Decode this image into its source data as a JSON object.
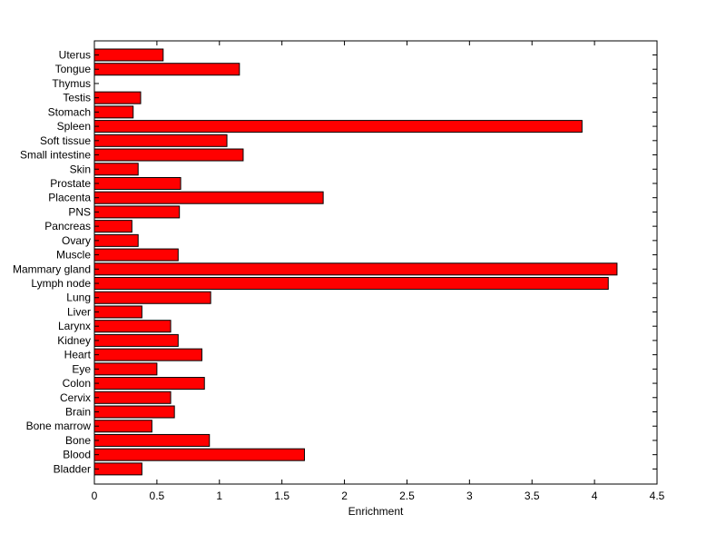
{
  "chart_data": {
    "type": "bar",
    "orientation": "horizontal",
    "xlabel": "Enrichment",
    "xlim": [
      0,
      4.5
    ],
    "xticks": [
      "0",
      "0.5",
      "1",
      "1.5",
      "2",
      "2.5",
      "3",
      "3.5",
      "4",
      "4.5"
    ],
    "categories": [
      "Uterus",
      "Tongue",
      "Thymus",
      "Testis",
      "Stomach",
      "Spleen",
      "Soft tissue",
      "Small intestine",
      "Skin",
      "Prostate",
      "Placenta",
      "PNS",
      "Pancreas",
      "Ovary",
      "Muscle",
      "Mammary gland",
      "Lymph node",
      "Lung",
      "Liver",
      "Larynx",
      "Kidney",
      "Heart",
      "Eye",
      "Colon",
      "Cervix",
      "Brain",
      "Bone marrow",
      "Bone",
      "Blood",
      "Bladder"
    ],
    "values": [
      0.55,
      1.16,
      0.0,
      0.37,
      0.31,
      3.9,
      1.06,
      1.19,
      0.35,
      0.69,
      1.83,
      0.68,
      0.3,
      0.35,
      0.67,
      4.18,
      4.11,
      0.93,
      0.38,
      0.61,
      0.67,
      0.86,
      0.5,
      0.88,
      0.61,
      0.64,
      0.46,
      0.92,
      1.68,
      0.38
    ],
    "bar_color": "#ff0000",
    "edge_color": "#000000",
    "grid": false,
    "legend": "none"
  }
}
